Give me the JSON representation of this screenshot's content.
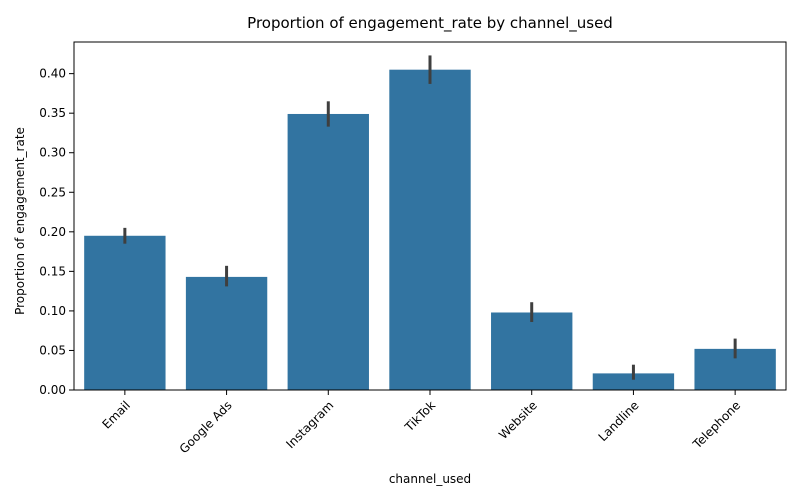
{
  "chart_data": {
    "type": "bar",
    "title": "Proportion of engagement_rate by channel_used",
    "xlabel": "channel_used",
    "ylabel": "Proportion of engagement_rate",
    "categories": [
      "Email",
      "Google Ads",
      "Instagram",
      "TikTok",
      "Website",
      "Landline",
      "Telephone"
    ],
    "values": [
      0.195,
      0.143,
      0.349,
      0.405,
      0.098,
      0.021,
      0.052
    ],
    "error_low": [
      0.185,
      0.131,
      0.333,
      0.387,
      0.086,
      0.013,
      0.04
    ],
    "error_high": [
      0.205,
      0.157,
      0.365,
      0.423,
      0.111,
      0.032,
      0.065
    ],
    "ylim": [
      0,
      0.44
    ],
    "yticks": [
      0.0,
      0.05,
      0.1,
      0.15,
      0.2,
      0.25,
      0.3,
      0.35,
      0.4
    ],
    "ytick_labels": [
      "0.00",
      "0.05",
      "0.10",
      "0.15",
      "0.20",
      "0.25",
      "0.30",
      "0.35",
      "0.40"
    ],
    "xtick_rotation": 45,
    "grid": false,
    "bar_color": "#3274a1",
    "error_color": "#3f3f3f"
  }
}
